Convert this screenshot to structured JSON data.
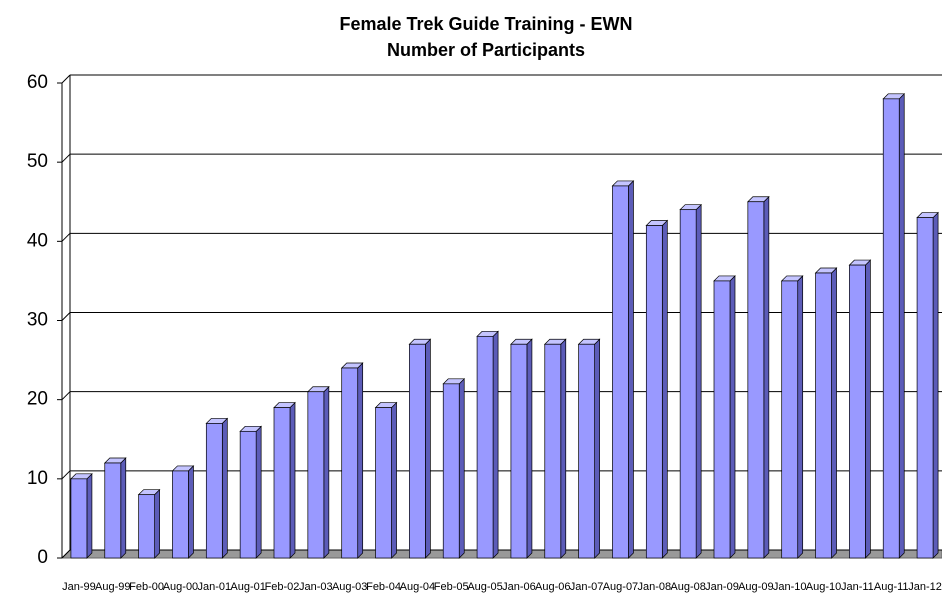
{
  "chart_data": {
    "type": "bar",
    "title": "Female Trek Guide Training - EWN",
    "subtitle": "Number of Participants",
    "categories": [
      "Jan-99",
      "Aug-99",
      "Feb-00",
      "Aug-00",
      "Jan-01",
      "Aug-01",
      "Feb-02",
      "Jan-03",
      "Aug-03",
      "Feb-04",
      "Aug-04",
      "Feb-05",
      "Aug-05",
      "Jan-06",
      "Aug-06",
      "Jan-07",
      "Aug-07",
      "Jan-08",
      "Aug-08",
      "Jan-09",
      "Aug-09",
      "Jan-10",
      "Aug-10",
      "Jan-11",
      "Aug-11",
      "Jan-12"
    ],
    "values": [
      10,
      12,
      8,
      11,
      17,
      16,
      19,
      21,
      24,
      19,
      27,
      22,
      28,
      27,
      27,
      27,
      47,
      42,
      44,
      35,
      45,
      35,
      36,
      37,
      58,
      43
    ],
    "color": "#9999ff",
    "ylim": [
      0,
      60
    ],
    "yticks": [
      0,
      10,
      20,
      30,
      40,
      50,
      60
    ],
    "grid": true
  }
}
